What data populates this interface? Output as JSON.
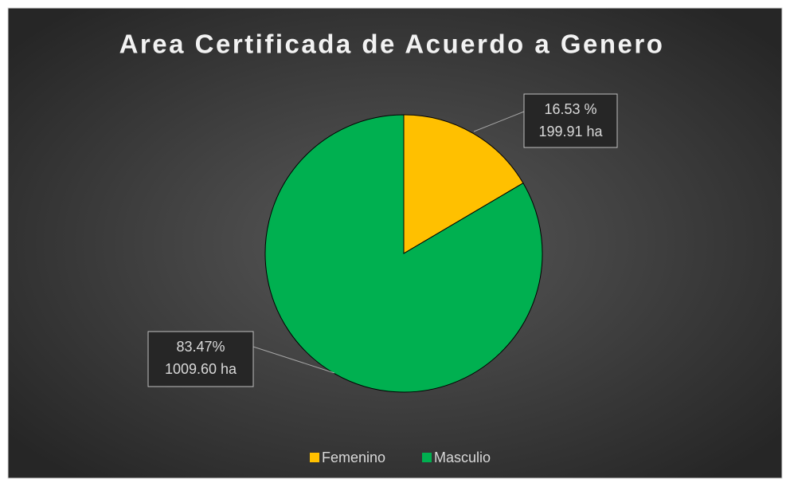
{
  "chart_data": {
    "type": "pie",
    "title": "Area Certificada de Acuerdo a Genero",
    "categories": [
      "Femenino",
      "Masculio"
    ],
    "values": [
      16.53,
      83.47
    ],
    "value_labels": [
      "16.53 %",
      "83.47%"
    ],
    "areas": [
      199.91,
      1009.6
    ],
    "area_labels": [
      "199.91 ha",
      "1009.60 ha"
    ],
    "colors": [
      "#ffc000",
      "#00b050"
    ],
    "legend": "bottom"
  }
}
